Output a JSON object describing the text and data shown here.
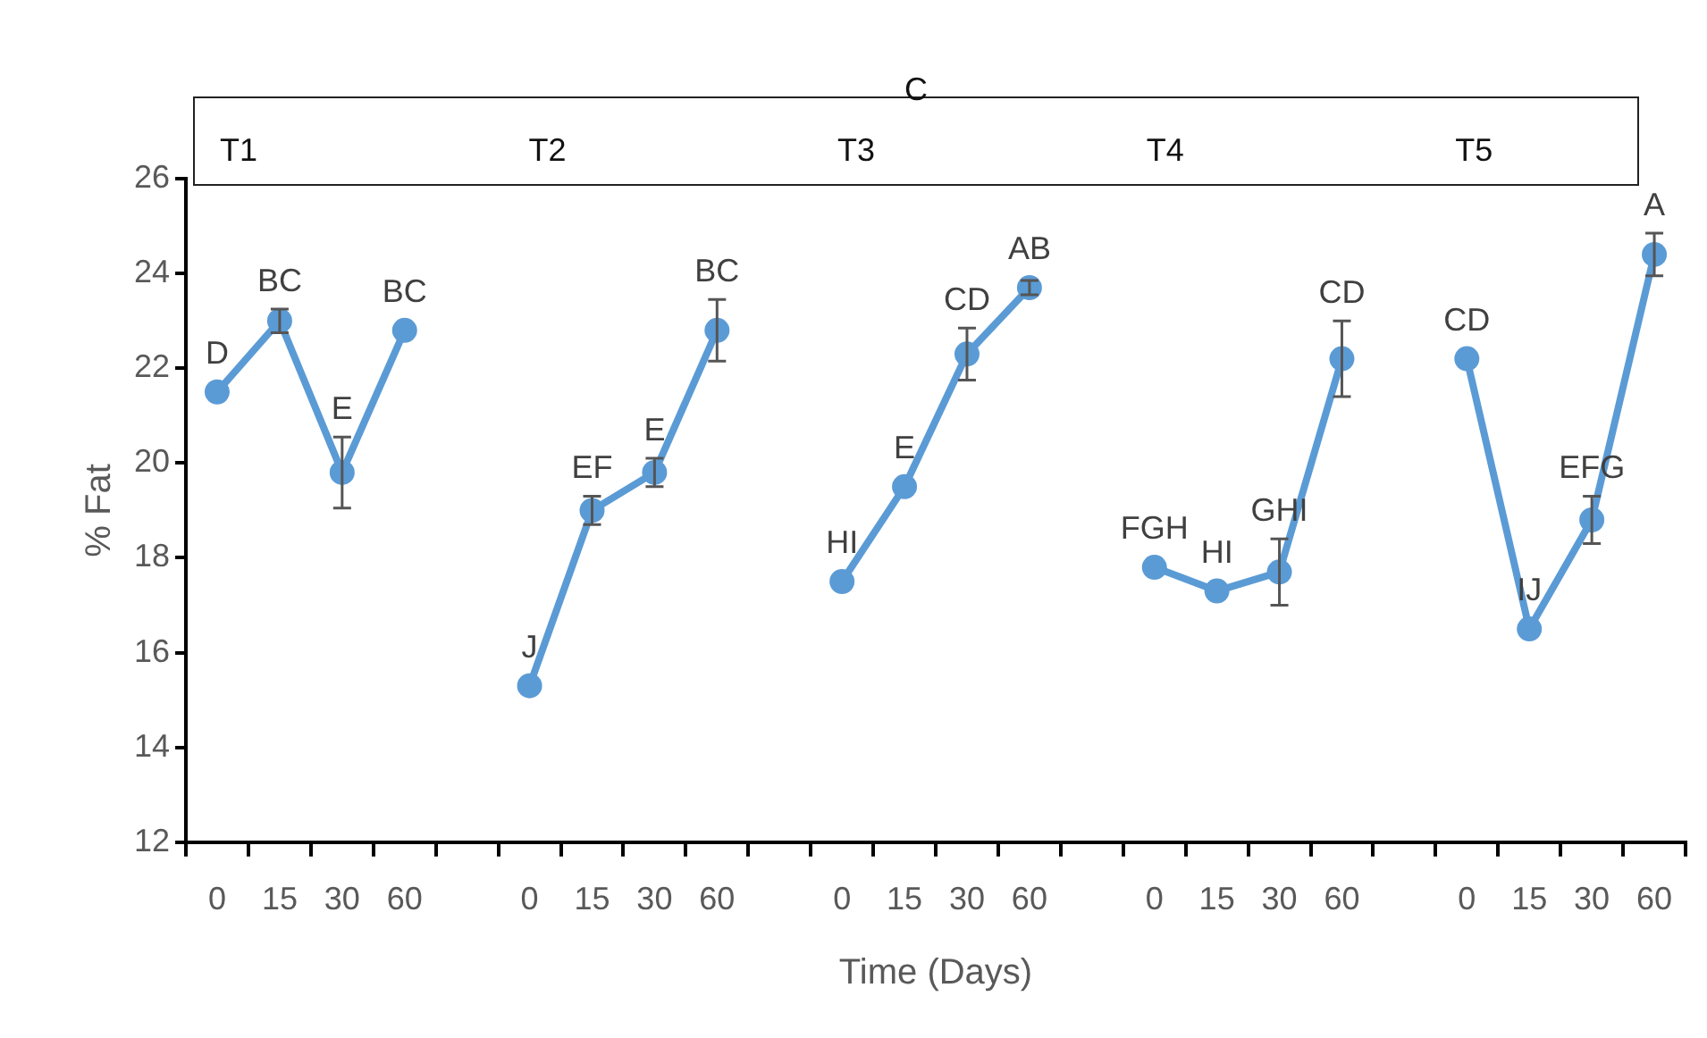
{
  "chart_data": {
    "type": "line",
    "xlabel": "Time (Days)",
    "ylabel": "% Fat",
    "categories": [
      "0",
      "15",
      "30",
      "60",
      null,
      "0",
      "15",
      "30",
      "60",
      null,
      "0",
      "15",
      "30",
      "60",
      null,
      "0",
      "15",
      "30",
      "60",
      null,
      "0",
      "15",
      "30",
      "60"
    ],
    "series": [
      {
        "color": "#5b9bd5",
        "values": [
          21.5,
          23.0,
          19.8,
          22.8,
          null,
          15.3,
          19.0,
          19.8,
          22.8,
          null,
          17.5,
          19.5,
          22.3,
          23.7,
          null,
          17.8,
          17.3,
          17.7,
          22.2,
          null,
          22.2,
          16.5,
          18.8,
          24.4
        ],
        "errors": [
          null,
          0.25,
          0.75,
          null,
          null,
          null,
          0.3,
          0.3,
          0.65,
          null,
          null,
          null,
          0.55,
          0.15,
          null,
          null,
          null,
          0.7,
          0.8,
          null,
          null,
          null,
          0.5,
          0.45
        ],
        "value_labels": [
          "D",
          "BC",
          "E",
          "BC",
          null,
          "J",
          "EF",
          "E",
          "BC",
          null,
          "HI",
          "E",
          "CD",
          "AB",
          null,
          "FGH",
          "HI",
          "GHI",
          "CD",
          null,
          "CD",
          "IJ",
          "EFG",
          "A"
        ]
      }
    ],
    "annotations": [
      "C",
      "T1",
      "T2",
      "T3",
      "T4",
      "T5"
    ],
    "ylim": [
      12,
      26
    ],
    "yticks": [
      12,
      14,
      16,
      18,
      20,
      22,
      24,
      26
    ],
    "grid": false,
    "legend": false,
    "marker": "circle",
    "line_style": "solid"
  }
}
